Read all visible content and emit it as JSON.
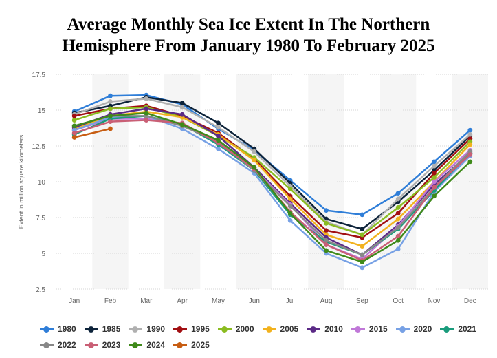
{
  "chart_data": {
    "type": "line",
    "title_lines": [
      "Average Monthly Sea Ice Extent In The Northern",
      "Hemisphere From January 1980 To February 2025"
    ],
    "xlabel": "",
    "ylabel": "Extent in million square kilometers",
    "categories": [
      "Jan",
      "Feb",
      "Mar",
      "Apr",
      "May",
      "Jun",
      "Jul",
      "Aug",
      "Sep",
      "Oct",
      "Nov",
      "Dec"
    ],
    "ylim": [
      2.5,
      17.5
    ],
    "yticks": [
      2.5,
      5,
      7.5,
      10,
      12.5,
      15,
      17.5
    ],
    "ytick_labels": [
      "2.5",
      "5",
      "7.5",
      "10",
      "12.5",
      "15",
      "17.5"
    ],
    "grid": true,
    "legend_position": "bottom",
    "series": [
      {
        "name": "1980",
        "color": "#2f7ed8",
        "values": [
          14.9,
          16.0,
          16.05,
          15.4,
          13.7,
          12.2,
          10.1,
          8.0,
          7.7,
          9.2,
          11.4,
          13.6
        ]
      },
      {
        "name": "1985",
        "color": "#0d233a",
        "values": [
          14.8,
          15.3,
          15.9,
          15.5,
          14.1,
          12.3,
          9.9,
          7.4,
          6.7,
          8.6,
          10.8,
          13.2
        ]
      },
      {
        "name": "1990",
        "color": "#b0b0b0",
        "values": [
          14.7,
          15.6,
          15.8,
          15.2,
          13.8,
          12.1,
          9.7,
          7.2,
          6.3,
          8.8,
          11.1,
          13.3
        ]
      },
      {
        "name": "1995",
        "color": "#a10f12",
        "values": [
          14.6,
          15.1,
          15.3,
          14.6,
          13.4,
          11.6,
          9.0,
          6.6,
          6.1,
          7.8,
          10.6,
          13.0
        ]
      },
      {
        "name": "2000",
        "color": "#8bbc21",
        "values": [
          14.3,
          15.1,
          15.2,
          14.5,
          13.2,
          11.7,
          9.5,
          7.1,
          6.3,
          8.2,
          10.3,
          12.8
        ]
      },
      {
        "name": "2005",
        "color": "#f2b21e",
        "values": [
          13.7,
          14.6,
          14.9,
          14.5,
          13.3,
          11.5,
          8.8,
          6.3,
          5.5,
          7.4,
          10.0,
          12.6
        ]
      },
      {
        "name": "2010",
        "color": "#5b2a86",
        "values": [
          13.8,
          14.7,
          15.1,
          14.7,
          13.2,
          11.0,
          8.5,
          6.1,
          4.9,
          7.0,
          9.8,
          12.0
        ]
      },
      {
        "name": "2015",
        "color": "#c078d8",
        "values": [
          13.6,
          14.4,
          14.4,
          14.0,
          12.7,
          10.9,
          8.4,
          5.6,
          4.6,
          6.9,
          10.0,
          12.2
        ]
      },
      {
        "name": "2020",
        "color": "#77a1e5",
        "values": [
          13.6,
          14.5,
          14.6,
          13.7,
          12.3,
          10.6,
          7.3,
          5.0,
          4.0,
          5.3,
          9.3,
          11.8
        ]
      },
      {
        "name": "2021",
        "color": "#1a9c7c",
        "values": [
          13.3,
          14.4,
          14.6,
          14.0,
          12.6,
          10.8,
          7.7,
          5.8,
          4.9,
          6.7,
          9.4,
          12.0
        ]
      },
      {
        "name": "2022",
        "color": "#888888",
        "values": [
          13.9,
          14.6,
          14.6,
          13.9,
          12.8,
          10.8,
          8.3,
          5.9,
          4.9,
          6.8,
          9.6,
          12.1
        ]
      },
      {
        "name": "2023",
        "color": "#c95f75",
        "values": [
          13.4,
          14.2,
          14.3,
          14.1,
          12.7,
          10.9,
          7.9,
          5.6,
          4.5,
          6.2,
          9.6,
          11.9
        ]
      },
      {
        "name": "2024",
        "color": "#3f8a1a",
        "values": [
          13.9,
          14.6,
          14.8,
          14.0,
          12.9,
          11.0,
          7.8,
          5.2,
          4.4,
          5.9,
          9.0,
          11.4
        ]
      },
      {
        "name": "2025",
        "color": "#c75d12",
        "values": [
          13.1,
          13.7,
          null,
          null,
          null,
          null,
          null,
          null,
          null,
          null,
          null,
          null
        ]
      }
    ]
  }
}
